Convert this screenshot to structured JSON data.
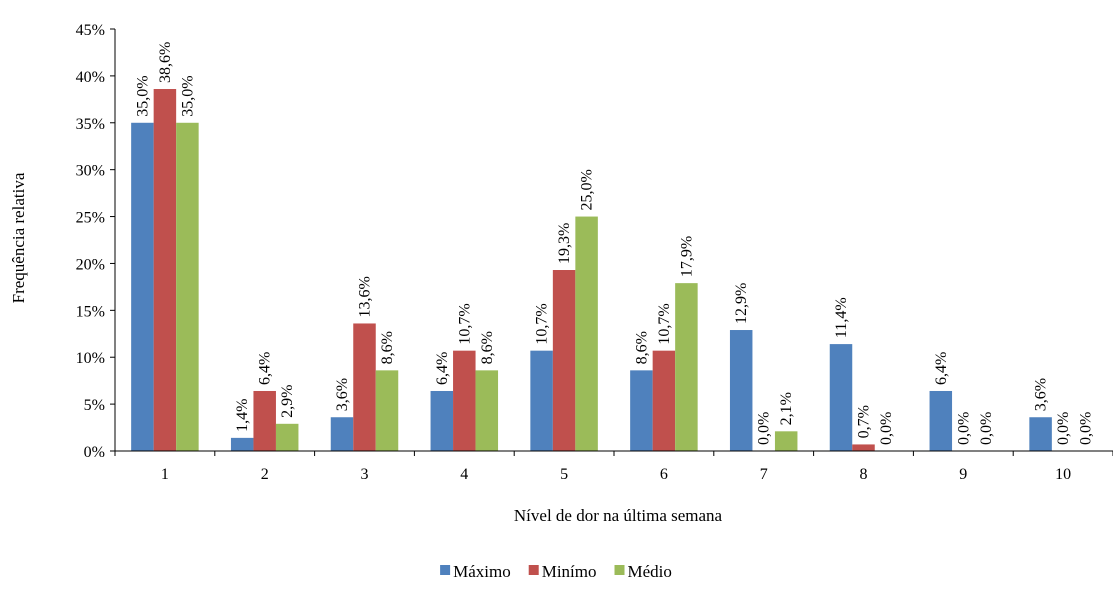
{
  "chart_data": {
    "type": "bar",
    "title": "",
    "xlabel": "Nível de dor na última semana",
    "ylabel": "Frequência relativa",
    "categories": [
      "1",
      "2",
      "3",
      "4",
      "5",
      "6",
      "7",
      "8",
      "9",
      "10"
    ],
    "yticks": [
      "0%",
      "5%",
      "10%",
      "15%",
      "20%",
      "25%",
      "30%",
      "35%",
      "40%",
      "45%"
    ],
    "ylim": [
      0,
      45
    ],
    "grid": false,
    "legend_position": "bottom",
    "series": [
      {
        "name": "Máximo",
        "color": "#4F81BD",
        "values": [
          35.0,
          1.4,
          3.6,
          6.4,
          10.7,
          8.6,
          12.9,
          11.4,
          6.4,
          3.6
        ],
        "labels": [
          "35,0%",
          "1,4%",
          "3,6%",
          "6,4%",
          "10,7%",
          "8,6%",
          "12,9%",
          "11,4%",
          "6,4%",
          "3,6%"
        ]
      },
      {
        "name": "Minímo",
        "color": "#C0504D",
        "values": [
          38.6,
          6.4,
          13.6,
          10.7,
          19.3,
          10.7,
          0.0,
          0.7,
          0.0,
          0.0
        ],
        "labels": [
          "38,6%",
          "6,4%",
          "13,6%",
          "10,7%",
          "19,3%",
          "10,7%",
          "0,0%",
          "0,7%",
          "0,0%",
          "0,0%"
        ]
      },
      {
        "name": "Médio",
        "color": "#9BBB59",
        "values": [
          35.0,
          2.9,
          8.6,
          8.6,
          25.0,
          17.9,
          2.1,
          0.0,
          0.0,
          0.0
        ],
        "labels": [
          "35,0%",
          "2,9%",
          "8,6%",
          "8,6%",
          "25,0%",
          "17,9%",
          "2,1%",
          "0,0%",
          "0,0%",
          "0,0%"
        ]
      }
    ]
  }
}
